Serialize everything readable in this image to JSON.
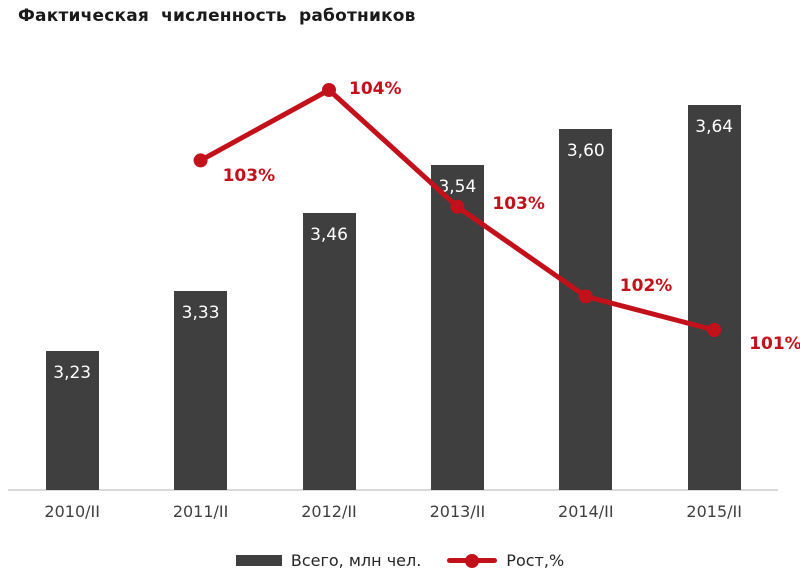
{
  "title": "Фактическая численность работников",
  "colors": {
    "background": "#ffffff",
    "bar": "#3f3f3f",
    "bar_label": "#ffffff",
    "line": "#c3111c",
    "line_label": "#c3111c",
    "axis_line": "#d9d9d9",
    "tick_label": "#3f3f3f",
    "title": "#1a1a1a",
    "legend_text": "#262626"
  },
  "chart_data": {
    "type": "bar+line",
    "title": "Фактическая численность работников",
    "xlabel": "",
    "ylabel": "",
    "categories": [
      "2010/II",
      "2011/II",
      "2012/II",
      "2013/II",
      "2014/II",
      "2015/II"
    ],
    "series": [
      {
        "name": "Всего, млн чел.",
        "type": "bar",
        "values": [
          3.23,
          3.33,
          3.46,
          3.54,
          3.6,
          3.64
        ],
        "labels": [
          "3,23",
          "3,33",
          "3,46",
          "3,54",
          "3,60",
          "3,64"
        ]
      },
      {
        "name": "Рост,%",
        "type": "line",
        "values": [
          null,
          103,
          104,
          103,
          102,
          101
        ],
        "labels": [
          null,
          "103%",
          "104%",
          "103%",
          "102%",
          "101%"
        ],
        "values_plot": [
          null,
          103.12,
          104.0,
          102.54,
          101.42,
          101.0
        ]
      }
    ],
    "ylim_bars": [
      3.0,
      3.714
    ],
    "ylim_line": [
      99.0,
      104.375
    ],
    "grid": false,
    "legend_position": "bottom",
    "label_offsets": [
      null,
      [
        22,
        7
      ],
      [
        20,
        -10
      ],
      [
        35,
        -12
      ],
      [
        34,
        -19
      ],
      [
        35,
        5
      ]
    ]
  },
  "legend": {
    "bars_label": "Всего, млн чел.",
    "line_label": "Рост,%"
  }
}
